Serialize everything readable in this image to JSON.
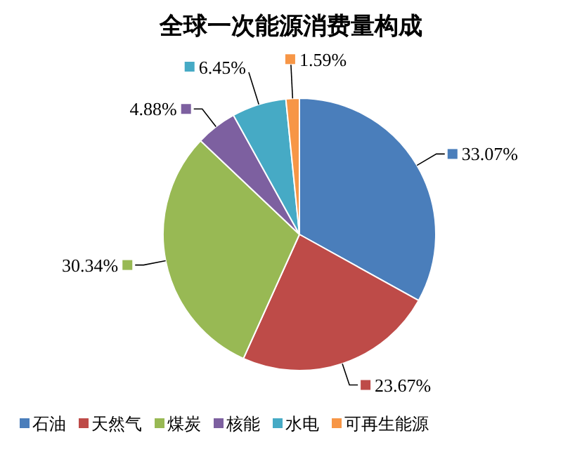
{
  "chart_data": {
    "type": "pie",
    "title": "全球一次能源消费量构成",
    "categories": [
      "石油",
      "天然气",
      "煤炭",
      "核能",
      "水电",
      "可再生能源"
    ],
    "values": [
      33.07,
      23.67,
      30.34,
      4.88,
      6.45,
      1.59
    ],
    "value_labels": [
      "33.07%",
      "23.67%",
      "30.34%",
      "4.88%",
      "6.45%",
      "1.59%"
    ],
    "colors": [
      "#4a7ebb",
      "#be4b48",
      "#98b954",
      "#7d60a0",
      "#46aac5",
      "#f79646"
    ],
    "legend": "bottom"
  }
}
